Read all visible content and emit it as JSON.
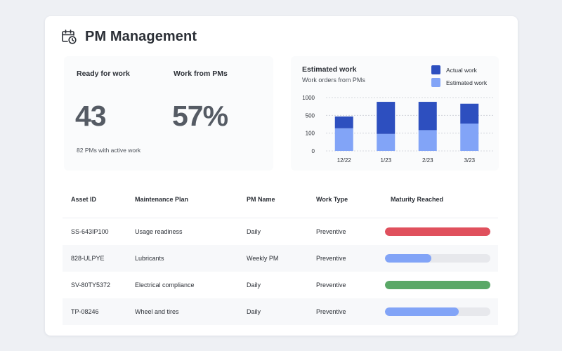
{
  "header": {
    "title": "PM Management",
    "icon": "calendar-clock-icon"
  },
  "stats": {
    "ready": {
      "label": "Ready for work",
      "value": "43",
      "foot": "82 PMs with active work"
    },
    "work_from_pms": {
      "label": "Work from PMs",
      "value": "57%"
    }
  },
  "chart_panel": {
    "title": "Estimated work",
    "subtitle": "Work orders from PMs",
    "legend": [
      {
        "label": "Actual work",
        "color": "#2d4fbf"
      },
      {
        "label": "Estimated work",
        "color": "#82a4f7"
      }
    ]
  },
  "chart_data": {
    "type": "bar",
    "stacked": true,
    "categories": [
      "12/22",
      "1/23",
      "2/23",
      "3/23"
    ],
    "y_tick_labels": [
      "1000",
      "500",
      "100",
      "0"
    ],
    "grid": true,
    "legend_position": "top-right",
    "series": [
      {
        "name": "Estimated work",
        "color": "#82a4f7",
        "values": [
          0.48,
          0.36,
          0.44,
          0.58
        ]
      },
      {
        "name": "Actual work",
        "color": "#2d4fbf",
        "values": [
          0.25,
          0.68,
          0.6,
          0.42
        ]
      }
    ]
  },
  "table": {
    "columns": [
      "Asset ID",
      "Maintenance Plan",
      "PM Name",
      "Work Type",
      "Maturity Reached"
    ],
    "rows": [
      {
        "asset_id": "SS-643IP100",
        "plan": "Usage readiness",
        "pm_name": "Daily",
        "work_type": "Preventive",
        "maturity": 1.0,
        "color": "#e0505d"
      },
      {
        "asset_id": "828-ULPYE",
        "plan": "Lubricants",
        "pm_name": "Weekly PM",
        "work_type": "Preventive",
        "maturity": 0.44,
        "color": "#82a4f7"
      },
      {
        "asset_id": "SV-80TY5372",
        "plan": "Electrical compliance",
        "pm_name": "Daily",
        "work_type": "Preventive",
        "maturity": 1.0,
        "color": "#5aa867"
      },
      {
        "asset_id": "TP-08246",
        "plan": "Wheel and tires",
        "pm_name": "Daily",
        "work_type": "Preventive",
        "maturity": 0.7,
        "color": "#82a4f7"
      }
    ]
  }
}
